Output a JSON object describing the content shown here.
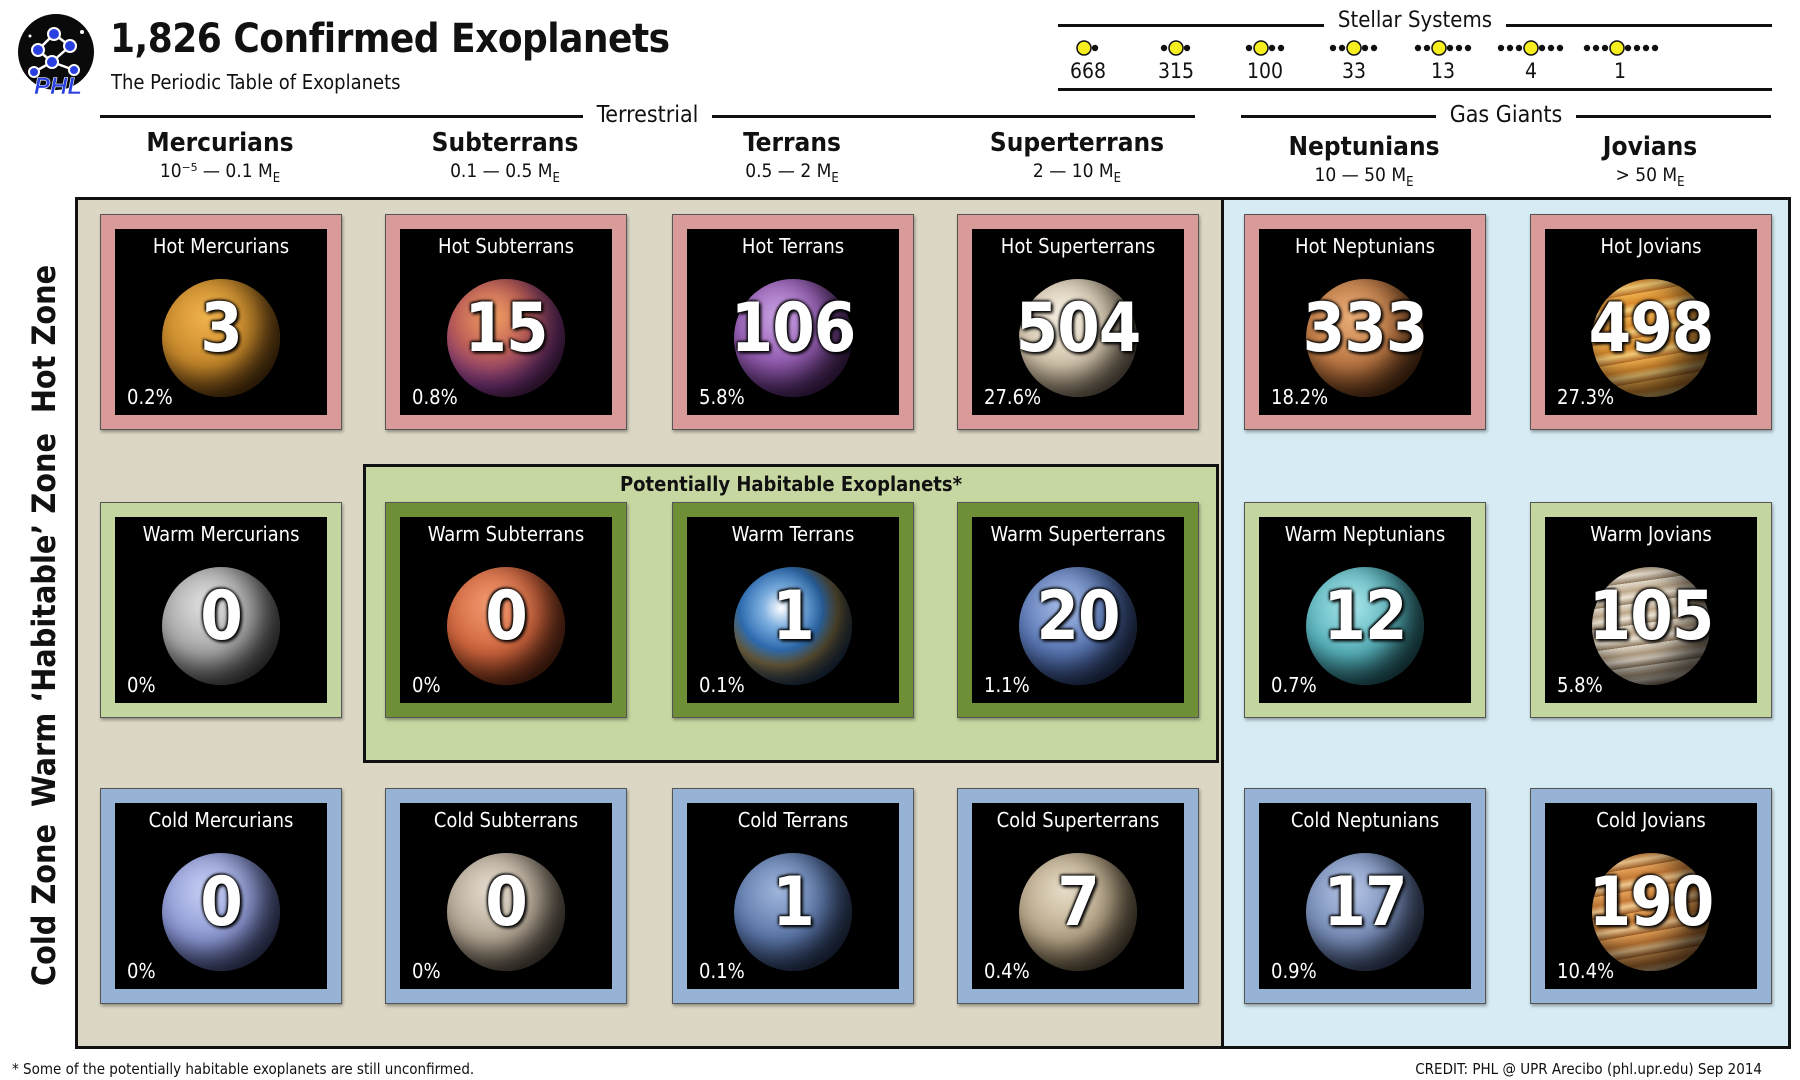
{
  "header": {
    "title": "1,826 Confirmed Exoplanets",
    "subtitle": "The Periodic Table of Exoplanets",
    "logo_text": "PHL"
  },
  "stellar_systems": {
    "title": "Stellar Systems",
    "items": [
      {
        "planets": 1,
        "count": "668"
      },
      {
        "planets": 2,
        "count": "315"
      },
      {
        "planets": 3,
        "count": "100"
      },
      {
        "planets": 4,
        "count": "33"
      },
      {
        "planets": 5,
        "count": "13"
      },
      {
        "planets": 6,
        "count": "4"
      },
      {
        "planets": 7,
        "count": "1"
      }
    ]
  },
  "groups": {
    "terrestrial": "Terrestrial",
    "gas_giants": "Gas Giants"
  },
  "columns": [
    {
      "name": "Mercurians",
      "mass": "10⁻⁵ — 0.1 M",
      "sub": "E"
    },
    {
      "name": "Subterrans",
      "mass": "0.1 — 0.5 M",
      "sub": "E"
    },
    {
      "name": "Terrans",
      "mass": "0.5 — 2 M",
      "sub": "E"
    },
    {
      "name": "Superterrans",
      "mass": "2 — 10 M",
      "sub": "E"
    },
    {
      "name": "Neptunians",
      "mass": "10 — 50 M",
      "sub": "E"
    },
    {
      "name": "Jovians",
      "mass": "> 50 M",
      "sub": "E"
    }
  ],
  "rows": {
    "hot": "Hot Zone",
    "warm": "Warm ‘Habitable’ Zone",
    "cold": "Cold Zone"
  },
  "habitable_label": "Potentially Habitable Exoplanets*",
  "tiles": [
    [
      {
        "name": "Hot Mercurians",
        "count": "3",
        "pct": "0.2%"
      },
      {
        "name": "Hot Subterrans",
        "count": "15",
        "pct": "0.8%"
      },
      {
        "name": "Hot Terrans",
        "count": "106",
        "pct": "5.8%"
      },
      {
        "name": "Hot Superterrans",
        "count": "504",
        "pct": "27.6%"
      },
      {
        "name": "Hot Neptunians",
        "count": "333",
        "pct": "18.2%"
      },
      {
        "name": "Hot Jovians",
        "count": "498",
        "pct": "27.3%"
      }
    ],
    [
      {
        "name": "Warm Mercurians",
        "count": "0",
        "pct": "0%"
      },
      {
        "name": "Warm Subterrans",
        "count": "0",
        "pct": "0%"
      },
      {
        "name": "Warm Terrans",
        "count": "1",
        "pct": "0.1%"
      },
      {
        "name": "Warm Superterrans",
        "count": "20",
        "pct": "1.1%"
      },
      {
        "name": "Warm Neptunians",
        "count": "12",
        "pct": "0.7%"
      },
      {
        "name": "Warm Jovians",
        "count": "105",
        "pct": "5.8%"
      }
    ],
    [
      {
        "name": "Cold Mercurians",
        "count": "0",
        "pct": "0%"
      },
      {
        "name": "Cold Subterrans",
        "count": "0",
        "pct": "0%"
      },
      {
        "name": "Cold Terrans",
        "count": "1",
        "pct": "0.1%"
      },
      {
        "name": "Cold Superterrans",
        "count": "7",
        "pct": "0.4%"
      },
      {
        "name": "Cold Neptunians",
        "count": "17",
        "pct": "0.9%"
      },
      {
        "name": "Cold Jovians",
        "count": "190",
        "pct": "10.4%"
      }
    ]
  ],
  "colors": {
    "hot_border": "#d99a9a",
    "warm_border": "#c3d6a0",
    "habitable_border": "#6f8f36",
    "cold_border": "#96b3d6",
    "terrestrial_bg": "#dcd7c4",
    "gas_bg": "#d6ebf3",
    "habitable_bg": "#c6d7a1"
  },
  "footer": {
    "footnote": "* Some of the potentially habitable exoplanets are still unconfirmed.",
    "credit": "CREDIT: PHL @ UPR Arecibo (phl.upr.edu) Sep 2014"
  }
}
